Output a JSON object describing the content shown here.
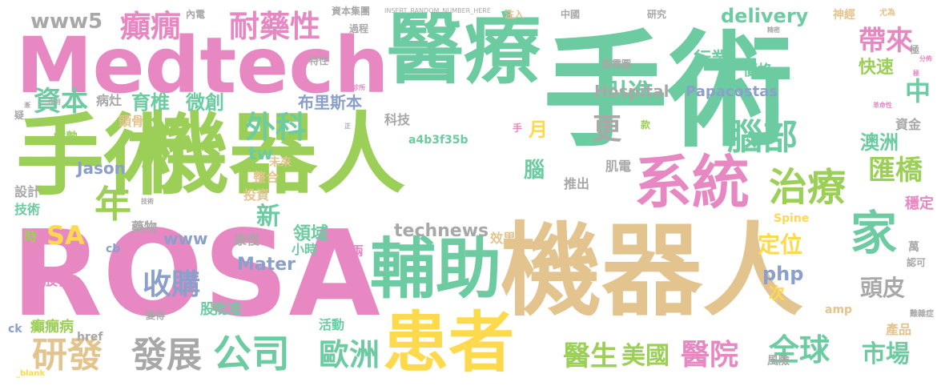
{
  "palette": {
    "green": "#9ccf57",
    "teal": "#6ccba0",
    "tan": "#e3c48e",
    "pink": "#e888c3",
    "yellow": "#fdd94e",
    "grey": "#a8a8a8",
    "blue": "#8aa0cb",
    "orange": "#f0927a"
  },
  "words": [
    "醫療",
    "手術",
    "Medtech",
    "ROSA",
    "機器人",
    "手術",
    "機器人",
    "系統",
    "輔助",
    "患者",
    "治療",
    "家",
    "腦部",
    "外科",
    "研發",
    "發展",
    "公司",
    "歐洲",
    "醫生",
    "美國",
    "醫院",
    "全球",
    "市場",
    "年",
    "SA",
    "收購",
    "資本",
    "育椎",
    "微創",
    "布里斯本",
    "引進",
    "帶來",
    "耐藥性",
    "癲癇",
    "www5",
    "delivery",
    "行業",
    "價格",
    "Papacostas",
    "Hospital",
    "快速",
    "中",
    "匯橋",
    "澳洲",
    "頭皮",
    "定位",
    "php",
    "technews",
    "領域",
    "新",
    "Mater",
    "www",
    "更",
    "腦",
    "月",
    "tw",
    "Jason",
    "成熟",
    "頭骨",
    "病灶",
    "科技",
    "a4b3f35b",
    "肌電",
    "資金",
    "穩定",
    "設計",
    "技術",
    "時",
    "藥物",
    "股份",
    "癲癇病",
    "ck",
    "href",
    "投資",
    "整合",
    "未來",
    "康復",
    "批准",
    "股",
    "小時",
    "兩",
    "次",
    "活動",
    "效果",
    "推出",
    "萬",
    "產品",
    "風險",
    "Spine",
    "amp",
    "內電",
    "資本集團",
    "中國",
    "研究",
    "注入",
    "神經",
    "尤為",
    "過程",
    "特性",
    "腦電圖",
    "INSERT_RANDOM_NUMBER_HERE",
    "cb",
    "_blank",
    "款",
    "認可",
    "極",
    "變得",
    "手",
    "分佈",
    "精密",
    "難雜症",
    "作用",
    "正",
    "極",
    "診所",
    "技術",
    "漸",
    "革命性",
    "疑"
  ]
}
